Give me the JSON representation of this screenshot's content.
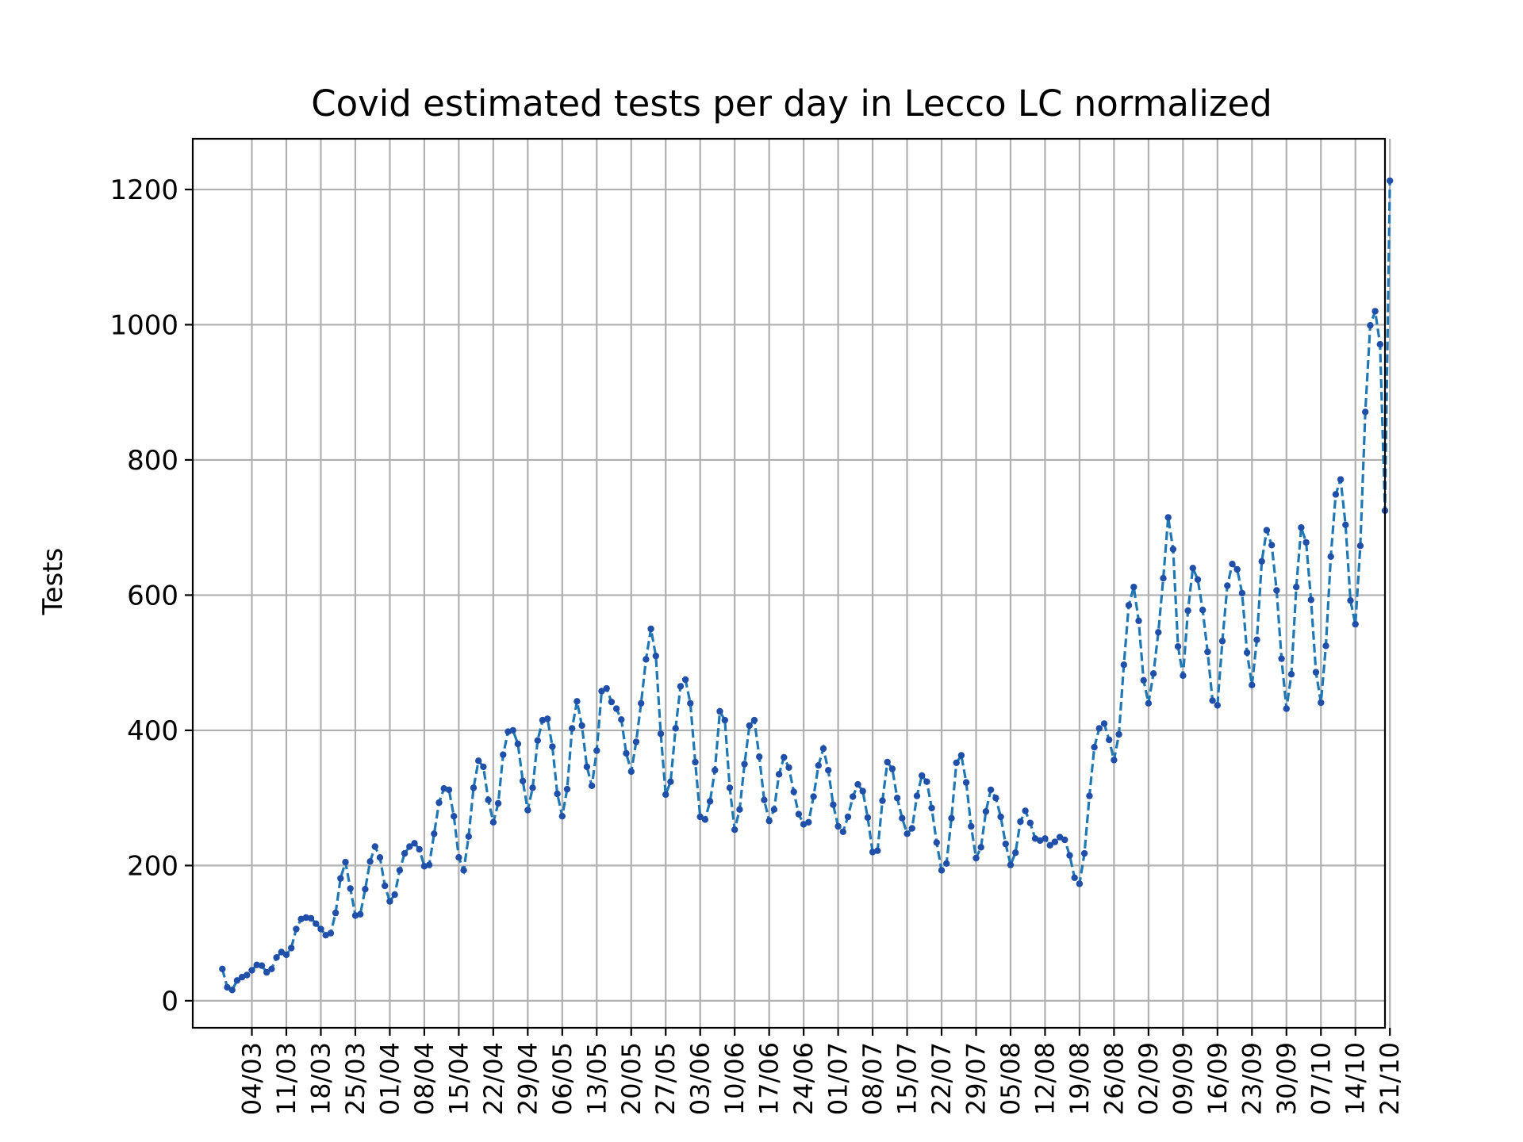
{
  "chart_data": {
    "type": "line",
    "title": "Covid estimated tests per day in Lecco LC normalized",
    "xlabel": "",
    "ylabel": "Tests",
    "ylim": [
      -40,
      1275
    ],
    "yticks": [
      0,
      200,
      400,
      600,
      800,
      1000,
      1200
    ],
    "xlim_days": [
      -6,
      236
    ],
    "xticks": [
      {
        "day": 6,
        "label": "04/03"
      },
      {
        "day": 13,
        "label": "11/03"
      },
      {
        "day": 20,
        "label": "18/03"
      },
      {
        "day": 27,
        "label": "25/03"
      },
      {
        "day": 34,
        "label": "01/04"
      },
      {
        "day": 41,
        "label": "08/04"
      },
      {
        "day": 48,
        "label": "15/04"
      },
      {
        "day": 55,
        "label": "22/04"
      },
      {
        "day": 62,
        "label": "29/04"
      },
      {
        "day": 69,
        "label": "06/05"
      },
      {
        "day": 76,
        "label": "13/05"
      },
      {
        "day": 83,
        "label": "20/05"
      },
      {
        "day": 90,
        "label": "27/05"
      },
      {
        "day": 97,
        "label": "03/06"
      },
      {
        "day": 104,
        "label": "10/06"
      },
      {
        "day": 111,
        "label": "17/06"
      },
      {
        "day": 118,
        "label": "24/06"
      },
      {
        "day": 125,
        "label": "01/07"
      },
      {
        "day": 132,
        "label": "08/07"
      },
      {
        "day": 139,
        "label": "15/07"
      },
      {
        "day": 146,
        "label": "22/07"
      },
      {
        "day": 153,
        "label": "29/07"
      },
      {
        "day": 160,
        "label": "05/08"
      },
      {
        "day": 167,
        "label": "12/08"
      },
      {
        "day": 174,
        "label": "19/08"
      },
      {
        "day": 181,
        "label": "26/08"
      },
      {
        "day": 188,
        "label": "02/09"
      },
      {
        "day": 195,
        "label": "09/09"
      },
      {
        "day": 202,
        "label": "16/09"
      },
      {
        "day": 209,
        "label": "23/09"
      },
      {
        "day": 216,
        "label": "30/09"
      },
      {
        "day": 223,
        "label": "07/10"
      },
      {
        "day": 230,
        "label": "14/10"
      },
      {
        "day": 237,
        "label": "21/10"
      }
    ],
    "grid": true,
    "series": [
      {
        "color": "#1f77b4",
        "marker_color": "#1f4fa8",
        "line_style": "dashed",
        "start_date": "27/02",
        "values": [
          47,
          20,
          16,
          30,
          35,
          38,
          45,
          53,
          52,
          42,
          47,
          64,
          72,
          68,
          78,
          106,
          121,
          123,
          122,
          114,
          106,
          97,
          100,
          130,
          181,
          205,
          166,
          126,
          128,
          165,
          206,
          228,
          212,
          170,
          147,
          157,
          193,
          218,
          228,
          233,
          224,
          199,
          201,
          247,
          293,
          314,
          312,
          273,
          212,
          193,
          243,
          315,
          355,
          346,
          297,
          264,
          292,
          364,
          398,
          400,
          380,
          325,
          282,
          315,
          385,
          415,
          417,
          376,
          306,
          273,
          313,
          403,
          443,
          407,
          346,
          318,
          370,
          458,
          462,
          442,
          432,
          416,
          366,
          339,
          383,
          440,
          505,
          550,
          510,
          395,
          305,
          324,
          403,
          465,
          475,
          440,
          353,
          272,
          268,
          295,
          341,
          428,
          415,
          315,
          253,
          283,
          350,
          407,
          415,
          361,
          297,
          266,
          283,
          335,
          360,
          345,
          309,
          276,
          261,
          264,
          302,
          348,
          373,
          341,
          290,
          258,
          250,
          272,
          302,
          320,
          310,
          271,
          220,
          222,
          296,
          353,
          343,
          300,
          270,
          247,
          255,
          303,
          333,
          324,
          285,
          234,
          193,
          203,
          270,
          352,
          363,
          323,
          258,
          211,
          227,
          280,
          312,
          300,
          272,
          232,
          201,
          219,
          265,
          281,
          263,
          240,
          237,
          240,
          230,
          235,
          242,
          238,
          215,
          182,
          173,
          218,
          303,
          375,
          403,
          410,
          386,
          356,
          394,
          497,
          585,
          612,
          562,
          474,
          440,
          484,
          545,
          625,
          715,
          668,
          524,
          481,
          577,
          640,
          623,
          578,
          516,
          444,
          437,
          532,
          614,
          646,
          638,
          603,
          515,
          467,
          534,
          650,
          696,
          674,
          607,
          506,
          432,
          483,
          612,
          700,
          678,
          593,
          486,
          441,
          525,
          657,
          749,
          771,
          704,
          592,
          557,
          673,
          871,
          999,
          1020,
          971,
          725,
          1213
        ]
      }
    ]
  }
}
